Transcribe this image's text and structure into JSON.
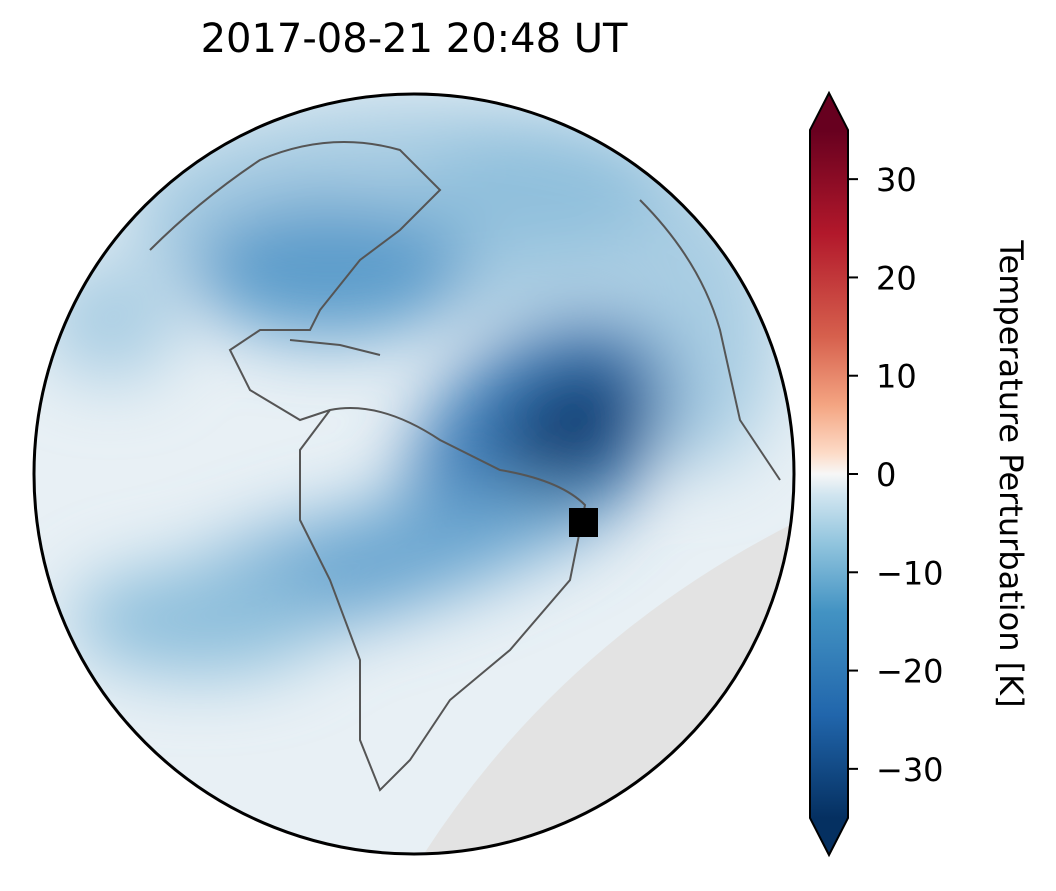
{
  "title": "2017-08-21  20:48 UT",
  "colorbar": {
    "label": "Temperature Perturbation [K]",
    "lim": [
      -35,
      35
    ],
    "ticks": [
      {
        "value": -30,
        "label": "−30"
      },
      {
        "value": -20,
        "label": "−20"
      },
      {
        "value": -10,
        "label": "−10"
      },
      0,
      10,
      20,
      30
    ]
  }
}
